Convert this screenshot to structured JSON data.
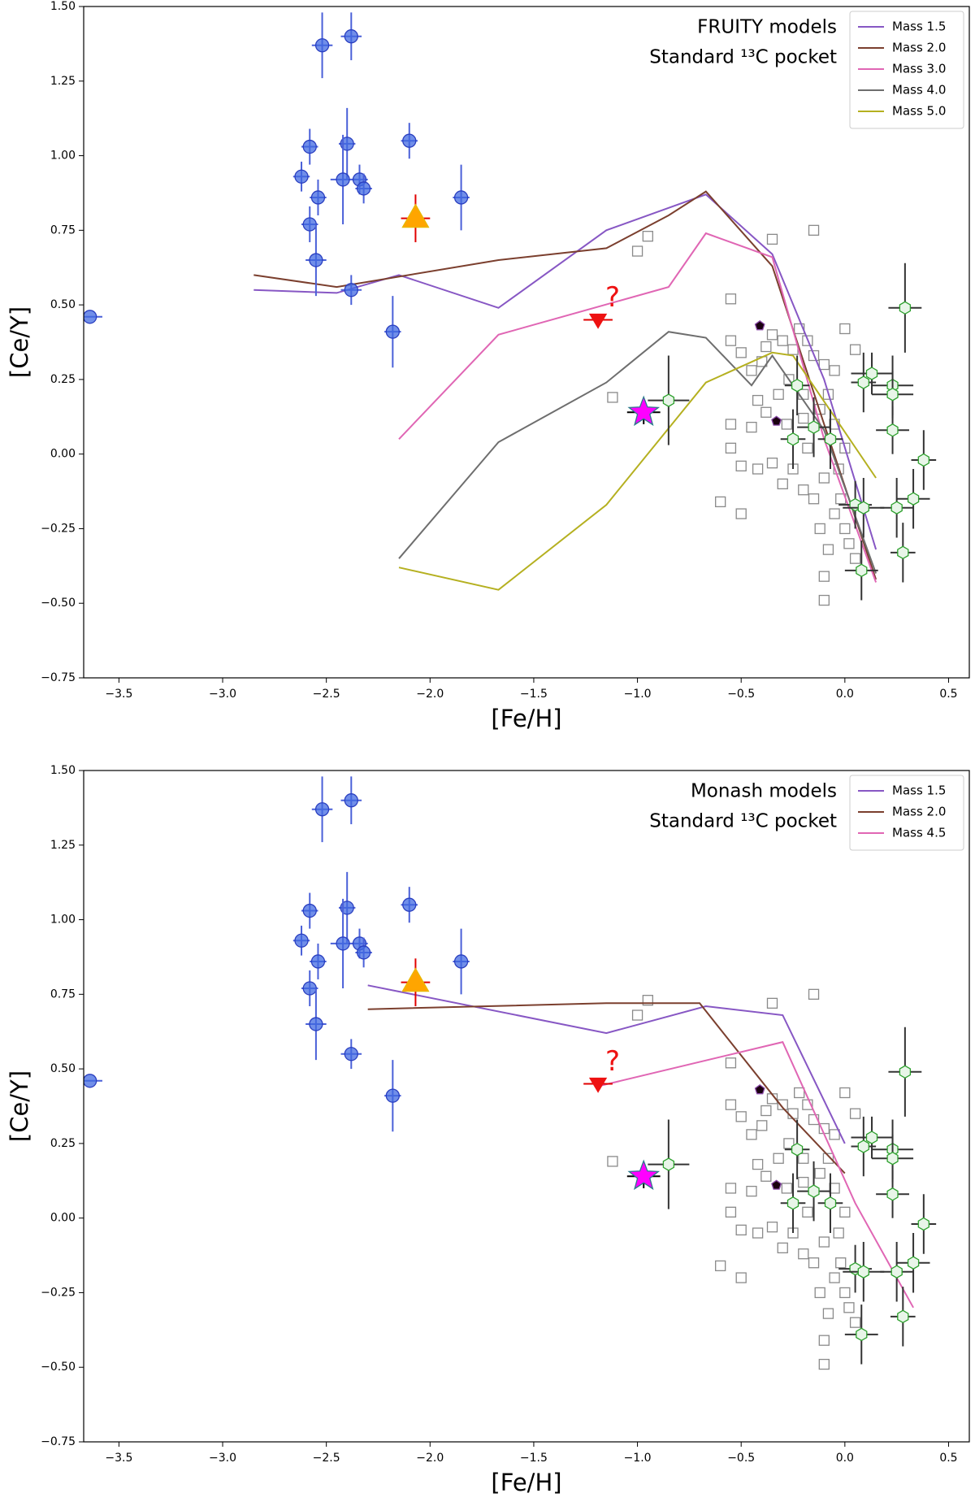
{
  "chart_data": [
    {
      "type": "scatter",
      "title": "FRUITY models",
      "subtitle": "Standard ¹³C pocket",
      "xlabel": "[Fe/H]",
      "ylabel": "[Ce/Y]",
      "xlim": [
        -3.67,
        0.6
      ],
      "ylim": [
        -0.75,
        1.5
      ],
      "xticks": [
        {
          "value": -3.5,
          "label": "−3.5"
        },
        {
          "value": -3.0,
          "label": "−3.0"
        },
        {
          "value": -2.5,
          "label": "−2.5"
        },
        {
          "value": -2.0,
          "label": "−2.0"
        },
        {
          "value": -1.5,
          "label": "−1.5"
        },
        {
          "value": -1.0,
          "label": "−1.0"
        },
        {
          "value": -0.5,
          "label": "−0.5"
        },
        {
          "value": 0,
          "label": "0.0"
        },
        0.5
      ],
      "yticks": [
        {
          "value": -0.75,
          "label": "−0.75"
        },
        {
          "value": -0.5,
          "label": "−0.50"
        },
        {
          "value": -0.25,
          "label": "−0.25"
        },
        {
          "value": 0,
          "label": "0.00"
        },
        0.25,
        {
          "value": 0.5,
          "label": "0.50"
        },
        0.75,
        {
          "value": 1,
          "label": "1.00"
        },
        1.25,
        {
          "value": 1.5,
          "label": "1.50"
        }
      ],
      "legend": "upper right",
      "series": [
        {
          "name": "Mass 1.5",
          "color": "#8757c4",
          "x": [
            -2.85,
            -2.45,
            -2.15,
            -1.67,
            -1.15,
            -0.67,
            -0.35,
            -0.1,
            0.15
          ],
          "values": [
            0.55,
            0.54,
            0.6,
            0.49,
            0.75,
            0.87,
            0.67,
            0.25,
            -0.32
          ]
        },
        {
          "name": "Mass 2.0",
          "color": "#7b3f2e",
          "x": [
            -2.85,
            -2.45,
            -1.67,
            -1.15,
            -0.85,
            -0.67,
            -0.35,
            -0.1,
            0.15
          ],
          "values": [
            0.6,
            0.56,
            0.65,
            0.69,
            0.8,
            0.88,
            0.63,
            0.1,
            -0.42
          ]
        },
        {
          "name": "Mass 3.0",
          "color": "#e066b4",
          "x": [
            -2.15,
            -1.67,
            -0.85,
            -0.67,
            -0.35,
            -0.1,
            0.15
          ],
          "values": [
            0.05,
            0.4,
            0.56,
            0.74,
            0.66,
            0.05,
            -0.43
          ]
        },
        {
          "name": "Mass 4.0",
          "color": "#6e6e6e",
          "x": [
            -2.15,
            -1.67,
            -1.15,
            -0.85,
            -0.67,
            -0.45,
            -0.35,
            -0.1,
            0.15
          ],
          "values": [
            -0.35,
            0.04,
            0.24,
            0.41,
            0.39,
            0.23,
            0.33,
            0.08,
            -0.4
          ]
        },
        {
          "name": "Mass 5.0",
          "color": "#b5b020",
          "x": [
            -2.15,
            -1.67,
            -1.15,
            -0.67,
            -0.35,
            -0.25,
            0.15
          ],
          "values": [
            -0.38,
            -0.455,
            -0.17,
            0.24,
            0.34,
            0.33,
            -0.08
          ]
        }
      ],
      "points": [
        {
          "marker": "square",
          "color": "#ffffff",
          "edge": "#8a8a8a",
          "x": [
            -1.12,
            -1.0,
            -0.95,
            -0.55,
            -0.55,
            -0.6,
            -0.5,
            -0.55,
            -0.55,
            -0.35,
            -0.15,
            -0.5,
            -0.45,
            -0.4,
            -0.38,
            -0.35,
            -0.3,
            -0.25,
            -0.22,
            -0.18,
            -0.15,
            -0.1,
            -0.05,
            -0.42,
            -0.38,
            -0.32,
            -0.28,
            -0.2,
            -0.12,
            -0.08,
            -0.42,
            -0.35,
            -0.3,
            -0.25,
            -0.2,
            -0.15,
            -0.1,
            -0.05,
            0,
            0.02,
            -0.12,
            -0.08,
            -0.1,
            -0.1,
            0.05,
            -0.02,
            0,
            -0.05,
            -0.18,
            -0.27,
            -0.45,
            -0.5,
            0.05,
            0,
            -0.2,
            -0.03
          ],
          "y": [
            0.19,
            0.68,
            0.73,
            0.52,
            0.38,
            -0.16,
            -0.2,
            0.1,
            0.02,
            0.72,
            0.75,
            0.34,
            0.28,
            0.31,
            0.36,
            0.4,
            0.38,
            0.35,
            0.42,
            0.38,
            0.33,
            0.3,
            0.28,
            0.18,
            0.14,
            0.2,
            0.1,
            0.12,
            0.15,
            0.2,
            -0.05,
            -0.03,
            -0.1,
            -0.05,
            -0.12,
            -0.15,
            -0.08,
            -0.2,
            -0.25,
            -0.3,
            -0.25,
            -0.32,
            -0.41,
            -0.49,
            -0.35,
            -0.15,
            0.02,
            0.1,
            0.02,
            0.25,
            0.09,
            -0.04,
            0.35,
            0.42,
            0.2,
            -0.05
          ]
        },
        {
          "marker": "circle",
          "color": "#4169e1",
          "edge": "#2a3fc0",
          "err_color": "#4a60d8",
          "x": [
            -3.64,
            -2.52,
            -2.38,
            -2.1,
            -2.62,
            -2.58,
            -2.4,
            -2.54,
            -2.42,
            -2.34,
            -2.32,
            -2.58,
            -2.55,
            -2.38,
            -2.18,
            -1.85
          ],
          "y": [
            0.46,
            1.37,
            1.4,
            1.05,
            0.93,
            1.03,
            1.04,
            0.86,
            0.92,
            0.92,
            0.89,
            0.77,
            0.65,
            0.55,
            0.41,
            0.86
          ],
          "xerr": [
            0.06,
            0.05,
            0.05,
            0.04,
            0.04,
            0.04,
            0.04,
            0.04,
            0.06,
            0.04,
            0.04,
            0.04,
            0.05,
            0.05,
            0.04,
            0.04
          ],
          "yerr": [
            0,
            0.11,
            0.08,
            0.06,
            0.05,
            0.06,
            0.12,
            0.06,
            0.15,
            0.05,
            0.05,
            0.06,
            0.12,
            0.05,
            0.12,
            0.11
          ]
        },
        {
          "marker": "triangle-up",
          "color": "#ffa500",
          "edge": "#e8b800",
          "err_color": "#e00000",
          "x": [
            -2.07
          ],
          "y": [
            0.79
          ],
          "xerr": [
            0.07
          ],
          "yerr": [
            0.08
          ]
        },
        {
          "marker": "triangle-down",
          "color": "#ee1111",
          "edge": "#ee1111",
          "err_color": "#e00000",
          "x": [
            -1.19
          ],
          "y": [
            0.45
          ],
          "xerr": [
            0.07
          ],
          "yerr": [
            0
          ],
          "annotation": "?"
        },
        {
          "marker": "star",
          "color": "#ff00ff",
          "edge": "#2a7a8a",
          "err_color": "#000000",
          "x": [
            -0.97
          ],
          "y": [
            0.14
          ],
          "xerr": [
            0.08
          ],
          "yerr": [
            0.04
          ]
        },
        {
          "marker": "pentagon",
          "color": "#1a0010",
          "edge": "#8a4aa8",
          "x": [
            -0.41,
            -0.33
          ],
          "y": [
            0.43,
            0.11
          ]
        },
        {
          "marker": "hexagon",
          "color": "#e8f5e8",
          "edge": "#2ca02c",
          "err_color": "#333333",
          "x": [
            -0.85,
            0.29,
            0.13,
            0.09,
            0.23,
            0.23,
            -0.23,
            0.23,
            -0.15,
            -0.25,
            -0.07,
            0.38,
            0.05,
            0.09,
            0.33,
            0.25,
            0.28,
            0.08
          ],
          "y": [
            0.18,
            0.49,
            0.27,
            0.24,
            0.23,
            0.2,
            0.23,
            0.08,
            0.09,
            0.05,
            0.05,
            -0.02,
            -0.17,
            -0.18,
            -0.15,
            -0.18,
            -0.33,
            -0.39
          ],
          "xerr": [
            0.1,
            0.08,
            0.1,
            0.06,
            0.1,
            0.1,
            0.06,
            0.08,
            0.08,
            0.06,
            0.06,
            0.06,
            0.08,
            0.1,
            0.08,
            0.08,
            0.06,
            0.08
          ],
          "yerr": [
            0.15,
            0.15,
            0.07,
            0.1,
            0.1,
            0.08,
            0.1,
            0.08,
            0.1,
            0.1,
            0.1,
            0.1,
            0.08,
            0.1,
            0.1,
            0.1,
            0.1,
            0.1
          ]
        }
      ]
    },
    {
      "type": "scatter",
      "title": "Monash models",
      "subtitle": "Standard ¹³C pocket",
      "xlabel": "[Fe/H]",
      "ylabel": "[Ce/Y]",
      "xlim": [
        -3.67,
        0.6
      ],
      "ylim": [
        -0.75,
        1.5
      ],
      "xticks": [
        {
          "value": -3.5,
          "label": "−3.5"
        },
        {
          "value": -3.0,
          "label": "−3.0"
        },
        {
          "value": -2.5,
          "label": "−2.5"
        },
        {
          "value": -2.0,
          "label": "−2.0"
        },
        {
          "value": -1.5,
          "label": "−1.5"
        },
        {
          "value": -1.0,
          "label": "−1.0"
        },
        {
          "value": -0.5,
          "label": "−0.5"
        },
        {
          "value": 0,
          "label": "0.0"
        },
        0.5
      ],
      "yticks": [
        {
          "value": -0.75,
          "label": "−0.75"
        },
        {
          "value": -0.5,
          "label": "−0.50"
        },
        {
          "value": -0.25,
          "label": "−0.25"
        },
        {
          "value": 0,
          "label": "0.00"
        },
        0.25,
        {
          "value": 0.5,
          "label": "0.50"
        },
        0.75,
        {
          "value": 1,
          "label": "1.00"
        },
        1.25,
        {
          "value": 1.5,
          "label": "1.50"
        }
      ],
      "legend": "upper right",
      "series": [
        {
          "name": "Mass 1.5",
          "color": "#8757c4",
          "x": [
            -2.3,
            -1.15,
            -0.67,
            -0.3,
            0
          ],
          "values": [
            0.78,
            0.62,
            0.71,
            0.68,
            0.25
          ]
        },
        {
          "name": "Mass 2.0",
          "color": "#7b3f2e",
          "x": [
            -2.3,
            -1.15,
            -0.7,
            -0.3,
            0
          ],
          "values": [
            0.7,
            0.72,
            0.72,
            0.37,
            0.15
          ]
        },
        {
          "name": "Mass 4.5",
          "color": "#e066b4",
          "x": [
            -1.2,
            -0.3,
            0.05,
            0.33
          ],
          "values": [
            0.44,
            0.59,
            0.05,
            -0.3
          ]
        }
      ],
      "points": [
        {
          "marker": "square",
          "color": "#ffffff",
          "edge": "#8a8a8a",
          "x": [
            -1.12,
            -1.0,
            -0.95,
            -0.55,
            -0.55,
            -0.6,
            -0.5,
            -0.55,
            -0.55,
            -0.35,
            -0.15,
            -0.5,
            -0.45,
            -0.4,
            -0.38,
            -0.35,
            -0.3,
            -0.25,
            -0.22,
            -0.18,
            -0.15,
            -0.1,
            -0.05,
            -0.42,
            -0.38,
            -0.32,
            -0.28,
            -0.2,
            -0.12,
            -0.08,
            -0.42,
            -0.35,
            -0.3,
            -0.25,
            -0.2,
            -0.15,
            -0.1,
            -0.05,
            0,
            0.02,
            -0.12,
            -0.08,
            -0.1,
            -0.1,
            0.05,
            -0.02,
            0,
            -0.05,
            -0.18,
            -0.27,
            -0.45,
            -0.5,
            0.05,
            0,
            -0.2,
            -0.03
          ],
          "y": [
            0.19,
            0.68,
            0.73,
            0.52,
            0.38,
            -0.16,
            -0.2,
            0.1,
            0.02,
            0.72,
            0.75,
            0.34,
            0.28,
            0.31,
            0.36,
            0.4,
            0.38,
            0.35,
            0.42,
            0.38,
            0.33,
            0.3,
            0.28,
            0.18,
            0.14,
            0.2,
            0.1,
            0.12,
            0.15,
            0.2,
            -0.05,
            -0.03,
            -0.1,
            -0.05,
            -0.12,
            -0.15,
            -0.08,
            -0.2,
            -0.25,
            -0.3,
            -0.25,
            -0.32,
            -0.41,
            -0.49,
            -0.35,
            -0.15,
            0.02,
            0.1,
            0.02,
            0.25,
            0.09,
            -0.04,
            0.35,
            0.42,
            0.2,
            -0.05
          ]
        },
        {
          "marker": "circle",
          "color": "#4169e1",
          "edge": "#2a3fc0",
          "err_color": "#4a60d8",
          "x": [
            -3.64,
            -2.52,
            -2.38,
            -2.1,
            -2.62,
            -2.58,
            -2.4,
            -2.54,
            -2.42,
            -2.34,
            -2.32,
            -2.58,
            -2.55,
            -2.38,
            -2.18,
            -1.85
          ],
          "y": [
            0.46,
            1.37,
            1.4,
            1.05,
            0.93,
            1.03,
            1.04,
            0.86,
            0.92,
            0.92,
            0.89,
            0.77,
            0.65,
            0.55,
            0.41,
            0.86
          ],
          "xerr": [
            0.06,
            0.05,
            0.05,
            0.04,
            0.04,
            0.04,
            0.04,
            0.04,
            0.06,
            0.04,
            0.04,
            0.04,
            0.05,
            0.05,
            0.04,
            0.04
          ],
          "yerr": [
            0,
            0.11,
            0.08,
            0.06,
            0.05,
            0.06,
            0.12,
            0.06,
            0.15,
            0.05,
            0.05,
            0.06,
            0.12,
            0.05,
            0.12,
            0.11
          ]
        },
        {
          "marker": "triangle-up",
          "color": "#ffa500",
          "edge": "#e8b800",
          "err_color": "#e00000",
          "x": [
            -2.07
          ],
          "y": [
            0.79
          ],
          "xerr": [
            0.07
          ],
          "yerr": [
            0.08
          ]
        },
        {
          "marker": "triangle-down",
          "color": "#ee1111",
          "edge": "#ee1111",
          "err_color": "#e00000",
          "x": [
            -1.19
          ],
          "y": [
            0.45
          ],
          "xerr": [
            0.07
          ],
          "yerr": [
            0
          ],
          "annotation": "?"
        },
        {
          "marker": "star",
          "color": "#ff00ff",
          "edge": "#2a7a8a",
          "err_color": "#000000",
          "x": [
            -0.97
          ],
          "y": [
            0.14
          ],
          "xerr": [
            0.08
          ],
          "yerr": [
            0.04
          ]
        },
        {
          "marker": "pentagon",
          "color": "#1a0010",
          "edge": "#8a4aa8",
          "x": [
            -0.41,
            -0.33
          ],
          "y": [
            0.43,
            0.11
          ]
        },
        {
          "marker": "hexagon",
          "color": "#e8f5e8",
          "edge": "#2ca02c",
          "err_color": "#333333",
          "x": [
            -0.85,
            0.29,
            0.13,
            0.09,
            0.23,
            0.23,
            -0.23,
            0.23,
            -0.15,
            -0.25,
            -0.07,
            0.38,
            0.05,
            0.09,
            0.33,
            0.25,
            0.28,
            0.08
          ],
          "y": [
            0.18,
            0.49,
            0.27,
            0.24,
            0.23,
            0.2,
            0.23,
            0.08,
            0.09,
            0.05,
            0.05,
            -0.02,
            -0.17,
            -0.18,
            -0.15,
            -0.18,
            -0.33,
            -0.39
          ],
          "xerr": [
            0.1,
            0.08,
            0.1,
            0.06,
            0.1,
            0.1,
            0.06,
            0.08,
            0.08,
            0.06,
            0.06,
            0.06,
            0.08,
            0.1,
            0.08,
            0.08,
            0.06,
            0.08
          ],
          "yerr": [
            0.15,
            0.15,
            0.07,
            0.1,
            0.1,
            0.08,
            0.1,
            0.08,
            0.1,
            0.1,
            0.1,
            0.1,
            0.08,
            0.1,
            0.1,
            0.1,
            0.1,
            0.1
          ]
        }
      ]
    }
  ]
}
